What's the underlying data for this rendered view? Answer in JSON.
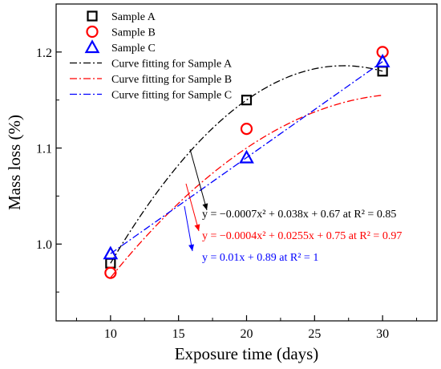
{
  "chart_data": {
    "type": "scatter",
    "xlabel": "Exposure time (days)",
    "ylabel": "Mass loss (%)",
    "xlim": [
      6,
      34
    ],
    "ylim": [
      0.92,
      1.25
    ],
    "xticks": [
      10,
      15,
      20,
      25,
      30
    ],
    "yticks": [
      1.0,
      1.1,
      1.2
    ],
    "xtick_labels": [
      "10",
      "15",
      "20",
      "25",
      "30"
    ],
    "ytick_labels": [
      "1.0",
      "1.1",
      "1.2"
    ],
    "grid": false,
    "legend_position": "top-left",
    "series": [
      {
        "name": "Sample A",
        "marker": "square",
        "color": "#000000",
        "x": [
          10,
          20,
          30
        ],
        "y": [
          0.98,
          1.15,
          1.18
        ]
      },
      {
        "name": "Sample B",
        "marker": "circle",
        "color": "#ff0000",
        "x": [
          10,
          20,
          30
        ],
        "y": [
          0.97,
          1.12,
          1.2
        ]
      },
      {
        "name": "Sample C",
        "marker": "triangle",
        "color": "#0000ff",
        "x": [
          10,
          20,
          30
        ],
        "y": [
          0.99,
          1.09,
          1.19
        ]
      }
    ],
    "fits": [
      {
        "name": "Curve fitting for Sample A",
        "color": "#000000",
        "coefficients": [
          -0.0007,
          0.038,
          0.67
        ],
        "equation": "y = −0.0007x² + 0.038x + 0.67 at R² = 0.85"
      },
      {
        "name": "Curve fitting for Sample B",
        "color": "#ff0000",
        "coefficients": [
          -0.0004,
          0.0255,
          0.75
        ],
        "equation": "y = −0.0004x² + 0.0255x + 0.75 at R² = 0.97"
      },
      {
        "name": "Curve fitting for Sample C",
        "color": "#0000ff",
        "coefficients": [
          0,
          0.01,
          0.89
        ],
        "equation": "y = 0.01x + 0.89 at R² = 1"
      }
    ],
    "fit_range": [
      10,
      30
    ]
  }
}
